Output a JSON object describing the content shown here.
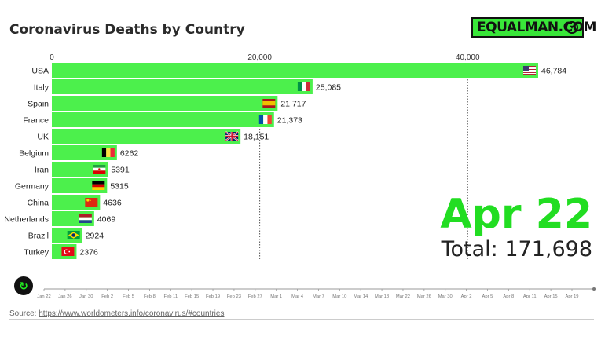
{
  "header": {
    "title": "Coronavirus Deaths by Country",
    "brand": "EQUALMAN.COM"
  },
  "status": {
    "date": "Apr 22",
    "total_label": "Total: 171,698"
  },
  "source": {
    "prefix": "Source: ",
    "link_text": "https://www.worldometers.info/coronavirus/#countries"
  },
  "icons": {
    "replay": "replay-icon",
    "brand": "heart-badge-icon"
  },
  "colors": {
    "bar": "#4cf04c",
    "date_highlight": "#22dd22",
    "brand_bg": "#39e639"
  },
  "chart_data": {
    "type": "bar",
    "orientation": "horizontal",
    "title": "Coronavirus Deaths by Country",
    "categories": [
      "USA",
      "Italy",
      "Spain",
      "France",
      "UK",
      "Belgium",
      "Iran",
      "Germany",
      "China",
      "Netherlands",
      "Brazil",
      "Turkey"
    ],
    "values": [
      46784,
      25085,
      21717,
      21373,
      18151,
      6262,
      5391,
      5315,
      4636,
      4069,
      2924,
      2376
    ],
    "value_labels": [
      "46,784",
      "25,085",
      "21,717",
      "21,373",
      "18,151",
      "6262",
      "5391",
      "5315",
      "4636",
      "4069",
      "2924",
      "2376"
    ],
    "xlim": [
      0,
      52000
    ],
    "xticks": [
      0,
      20000,
      40000
    ],
    "xtick_labels": [
      "0",
      "20,000",
      "40,000"
    ],
    "grid": "vertical dashed at ticks",
    "flag_icons": [
      "usa-flag-icon",
      "italy-flag-icon",
      "spain-flag-icon",
      "france-flag-icon",
      "uk-flag-icon",
      "belgium-flag-icon",
      "iran-flag-icon",
      "germany-flag-icon",
      "china-flag-icon",
      "netherlands-flag-icon",
      "brazil-flag-icon",
      "turkey-flag-icon"
    ],
    "timeline": {
      "labels": [
        "Jan 22",
        "Jan 26",
        "Jan 30",
        "Feb 2",
        "Feb 5",
        "Feb 8",
        "Feb 11",
        "Feb 15",
        "Feb 19",
        "Feb 23",
        "Feb 27",
        "Mar 1",
        "Mar 4",
        "Mar 7",
        "Mar 10",
        "Mar 14",
        "Mar 18",
        "Mar 22",
        "Mar 26",
        "Mar 30",
        "Apr 2",
        "Apr 5",
        "Apr 8",
        "Apr 11",
        "Apr 15",
        "Apr 19"
      ],
      "current": "Apr 22"
    }
  }
}
